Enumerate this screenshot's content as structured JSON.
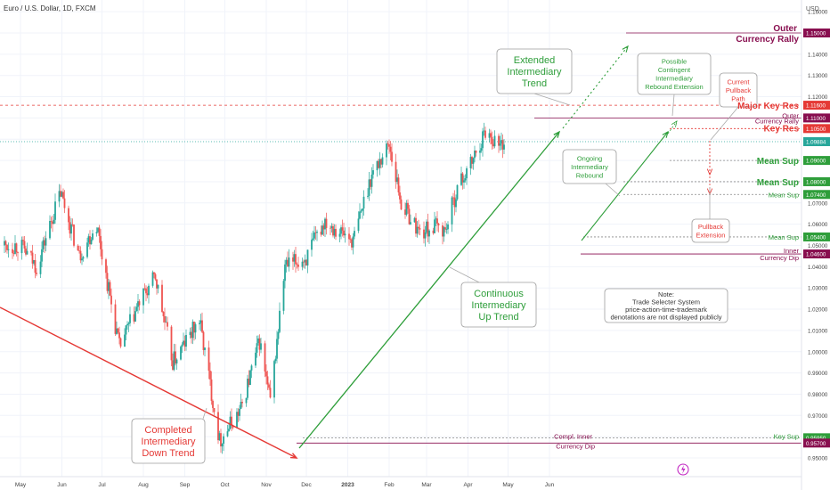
{
  "header": {
    "title": "Euro / U.S. Dollar, 1D, FXCM",
    "currency": "USD"
  },
  "colors": {
    "up": "#26a69a",
    "down": "#ef5350",
    "green": "#2e9e3a",
    "red": "#e53935",
    "maroon": "#880e4f",
    "grid": "#f0f3fa",
    "axis_text": "#444444"
  },
  "chart_data": {
    "type": "candlestick",
    "title": "Euro / U.S. Dollar, 1D, FXCM",
    "x_ticks": [
      "May",
      "Jun",
      "Jul",
      "Aug",
      "Sep",
      "Oct",
      "Nov",
      "Dec",
      "2023",
      "Feb",
      "Mar",
      "Apr",
      "May",
      "Jun"
    ],
    "y_ticks": [
      "1.16000",
      "1.15000",
      "1.14000",
      "1.13000",
      "1.12000",
      "1.11000",
      "1.10000",
      "1.09000",
      "1.08000",
      "1.07000",
      "1.06000",
      "1.05000",
      "1.04000",
      "1.03000",
      "1.02000",
      "1.01000",
      "1.00000",
      "0.99000",
      "0.98000",
      "0.97000",
      "0.96000",
      "0.95000"
    ],
    "y_range": [
      0.948,
      1.165
    ],
    "series": [
      {
        "points": [
          {
            "date": "2022-05-01",
            "close": 1.05
          },
          {
            "date": "2022-05-13",
            "close": 1.04
          },
          {
            "date": "2022-05-31",
            "close": 1.075
          },
          {
            "date": "2022-06-14",
            "close": 1.045
          },
          {
            "date": "2022-06-27",
            "close": 1.06
          },
          {
            "date": "2022-07-14",
            "close": 1.002
          },
          {
            "date": "2022-07-29",
            "close": 1.023
          },
          {
            "date": "2022-08-10",
            "close": 1.035
          },
          {
            "date": "2022-08-23",
            "close": 0.995
          },
          {
            "date": "2022-09-12",
            "close": 1.015
          },
          {
            "date": "2022-09-27",
            "close": 0.958
          },
          {
            "date": "2022-10-13",
            "close": 0.973
          },
          {
            "date": "2022-10-27",
            "close": 1.005
          },
          {
            "date": "2022-11-04",
            "close": 0.976
          },
          {
            "date": "2022-11-15",
            "close": 1.04
          },
          {
            "date": "2022-12-01",
            "close": 1.044
          },
          {
            "date": "2022-12-15",
            "close": 1.062
          },
          {
            "date": "2023-01-05",
            "close": 1.052
          },
          {
            "date": "2023-01-18",
            "close": 1.082
          },
          {
            "date": "2023-02-01",
            "close": 1.098
          },
          {
            "date": "2023-02-10",
            "close": 1.07
          },
          {
            "date": "2023-02-24",
            "close": 1.056
          },
          {
            "date": "2023-03-08",
            "close": 1.059
          },
          {
            "date": "2023-03-15",
            "close": 1.057
          },
          {
            "date": "2023-03-24",
            "close": 1.077
          },
          {
            "date": "2023-04-03",
            "close": 1.088
          },
          {
            "date": "2023-04-14",
            "close": 1.104
          },
          {
            "date": "2023-04-25",
            "close": 1.097
          },
          {
            "date": "2023-04-28",
            "close": 1.0988
          }
        ]
      }
    ],
    "price_tags": [
      {
        "label": "1.15000",
        "value": 1.15,
        "color": "#880e4f"
      },
      {
        "label": "1.11600",
        "value": 1.116,
        "color": "#e53935"
      },
      {
        "label": "1.11000",
        "value": 1.11,
        "color": "#880e4f"
      },
      {
        "label": "1.10500",
        "value": 1.105,
        "color": "#e53935"
      },
      {
        "label": "1.09884",
        "value": 1.09884,
        "color": "#26a69a"
      },
      {
        "label": "1.09000",
        "value": 1.09,
        "color": "#2e9e3a"
      },
      {
        "label": "1.08000",
        "value": 1.08,
        "color": "#2e9e3a"
      },
      {
        "label": "1.07400",
        "value": 1.074,
        "color": "#2e9e3a"
      },
      {
        "label": "1.05400",
        "value": 1.054,
        "color": "#2e9e3a"
      },
      {
        "label": "1.04600",
        "value": 1.046,
        "color": "#880e4f"
      },
      {
        "label": "0.95950",
        "value": 0.9595,
        "color": "#2e9e3a"
      },
      {
        "label": "0.95700",
        "value": 0.957,
        "color": "#880e4f"
      }
    ],
    "level_labels": [
      {
        "text": "Outer",
        "value": 1.15,
        "color": "#880e4f"
      },
      {
        "text": "Currency Rally",
        "value": 1.15,
        "color": "#880e4f"
      },
      {
        "text": "Major Key Res",
        "value": 1.116,
        "color": "#e53935"
      },
      {
        "text": "Outer",
        "value": 1.11,
        "color": "#880e4f"
      },
      {
        "text": "Currency Rally",
        "value": 1.11,
        "color": "#880e4f"
      },
      {
        "text": "Key Res",
        "value": 1.105,
        "color": "#e53935"
      },
      {
        "text": "Mean Sup",
        "value": 1.09,
        "color": "#2e9e3a"
      },
      {
        "text": "Mean Sup",
        "value": 1.08,
        "color": "#2e9e3a"
      },
      {
        "text": "Mean Sup",
        "value": 1.074,
        "color": "#2e9e3a"
      },
      {
        "text": "Mean Sup",
        "value": 1.054,
        "color": "#2e9e3a"
      },
      {
        "text": "Inner",
        "value": 1.046,
        "color": "#880e4f"
      },
      {
        "text": "Currency Dip",
        "value": 1.046,
        "color": "#880e4f"
      },
      {
        "text": "Key Sup",
        "value": 0.9595,
        "color": "#2e9e3a"
      },
      {
        "text": "Compl. Inner",
        "value": 0.9595,
        "color": "#880e4f"
      },
      {
        "text": "Currency Dip",
        "value": 0.957,
        "color": "#880e4f"
      }
    ],
    "annotations": [
      {
        "lines": [
          "Extended",
          "Intermediary",
          "Trend"
        ],
        "color": "#2e9e3a"
      },
      {
        "lines": [
          "Possible",
          "Contingent",
          "Intermediary",
          "Rebound Extension"
        ],
        "color": "#2e9e3a"
      },
      {
        "lines": [
          "Current",
          "Pullback",
          "Path"
        ],
        "color": "#e53935"
      },
      {
        "lines": [
          "Ongoing",
          "Intermediary",
          "Rebound"
        ],
        "color": "#2e9e3a"
      },
      {
        "lines": [
          "Pullback",
          "Extension"
        ],
        "color": "#e53935"
      },
      {
        "lines": [
          "Note:",
          "Trade Selecter System",
          "price-action-time-trademark",
          "denotations are not displayed publicly"
        ],
        "color": "#333333"
      },
      {
        "lines": [
          "Continuous",
          "Intermediary",
          "Up Trend"
        ],
        "color": "#2e9e3a"
      },
      {
        "lines": [
          "Completed",
          "Intermediary",
          "Down Trend"
        ],
        "color": "#e53935"
      }
    ]
  }
}
